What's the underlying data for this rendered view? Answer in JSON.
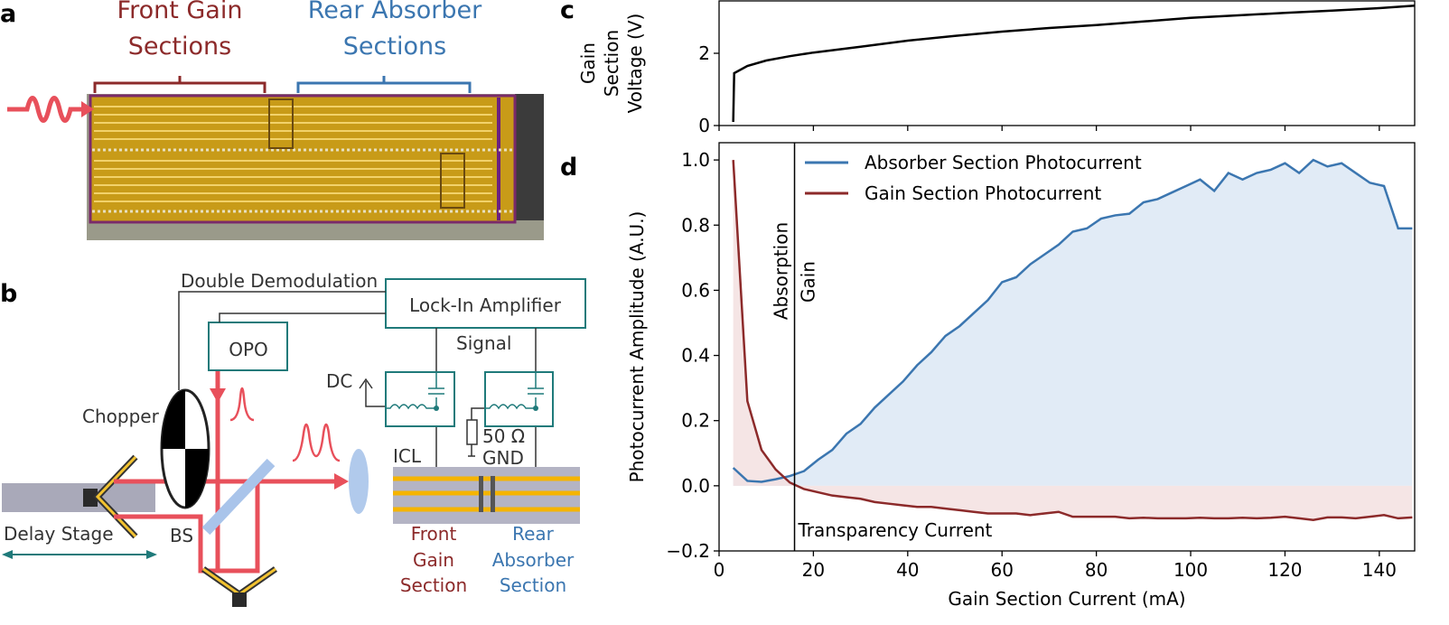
{
  "panels": {
    "letters": [
      "a",
      "b",
      "c",
      "d"
    ],
    "a": {
      "front_label": [
        "Front Gain",
        "Sections"
      ],
      "rear_label": [
        "Rear Absorber",
        "Sections"
      ]
    },
    "b": {
      "double_demodulation": "Double Demodulation",
      "lock_in": "Lock-In Amplifier",
      "opo": "OPO",
      "signal": "Signal",
      "dc": "DC",
      "chopper": "Chopper",
      "resistor": "50 Ω",
      "gnd": "GND",
      "icl": "ICL",
      "delay_stage": "Delay Stage",
      "bs": "BS",
      "front_section": [
        "Front",
        "Gain",
        "Section"
      ],
      "rear_section": [
        "Rear",
        "Absorber",
        "Section"
      ]
    }
  },
  "chart_data": [
    {
      "type": "line",
      "ylabel_lines": [
        "Gain",
        "Section",
        "Voltage (V)"
      ],
      "x": [
        3,
        3.2,
        6,
        10,
        15,
        20,
        30,
        40,
        50,
        60,
        70,
        80,
        90,
        100,
        110,
        120,
        130,
        140,
        147.5
      ],
      "series": [
        {
          "color": "#000000",
          "values": [
            0.1,
            1.45,
            1.65,
            1.8,
            1.92,
            2.02,
            2.18,
            2.35,
            2.48,
            2.6,
            2.7,
            2.78,
            2.88,
            2.98,
            3.05,
            3.12,
            3.18,
            3.25,
            3.32
          ]
        }
      ],
      "xlim": [
        0,
        147.5
      ],
      "ylim": [
        0,
        3.45
      ],
      "xticks": [
        0,
        20,
        40,
        60,
        80,
        100,
        120,
        140
      ],
      "yticks": [
        0,
        2
      ],
      "show_xtick_labels": false
    },
    {
      "type": "line",
      "xlabel": "Gain Section Current (mA)",
      "ylabel": "Photocurrent Amplitude (A.U.)",
      "x": [
        3,
        6,
        9,
        12,
        15,
        18,
        21,
        24,
        27,
        30,
        33,
        36,
        39,
        42,
        45,
        48,
        51,
        54,
        57,
        60,
        63,
        66,
        69,
        72,
        75,
        78,
        81,
        84,
        87,
        90,
        93,
        96,
        99,
        102,
        105,
        108,
        111,
        114,
        117,
        120,
        123,
        126,
        129,
        132,
        135,
        138,
        141,
        144,
        147
      ],
      "series": [
        {
          "name": "Absorber Section Photocurrent",
          "color": "#3b76b0",
          "fill": "#dce7f5",
          "values": [
            0.055,
            0.015,
            0.012,
            0.02,
            0.03,
            0.045,
            0.08,
            0.11,
            0.16,
            0.19,
            0.24,
            0.28,
            0.32,
            0.37,
            0.41,
            0.46,
            0.49,
            0.53,
            0.57,
            0.625,
            0.64,
            0.68,
            0.71,
            0.74,
            0.78,
            0.79,
            0.82,
            0.83,
            0.835,
            0.87,
            0.88,
            0.9,
            0.92,
            0.94,
            0.905,
            0.96,
            0.94,
            0.96,
            0.97,
            0.99,
            0.96,
            1.0,
            0.98,
            0.99,
            0.96,
            0.93,
            0.92,
            0.79,
            0.79
          ]
        },
        {
          "name": "Gain Section Photocurrent",
          "color": "#8c2a2a",
          "fill": "#f3e0e0",
          "values": [
            1.0,
            0.26,
            0.11,
            0.05,
            0.01,
            -0.01,
            -0.02,
            -0.03,
            -0.035,
            -0.04,
            -0.05,
            -0.055,
            -0.06,
            -0.065,
            -0.065,
            -0.07,
            -0.075,
            -0.08,
            -0.085,
            -0.085,
            -0.085,
            -0.09,
            -0.085,
            -0.08,
            -0.095,
            -0.095,
            -0.095,
            -0.095,
            -0.1,
            -0.098,
            -0.1,
            -0.1,
            -0.1,
            -0.098,
            -0.1,
            -0.1,
            -0.098,
            -0.1,
            -0.098,
            -0.095,
            -0.1,
            -0.105,
            -0.097,
            -0.097,
            -0.1,
            -0.095,
            -0.09,
            -0.1,
            -0.097
          ]
        }
      ],
      "xlim": [
        0,
        147.5
      ],
      "ylim": [
        -0.2,
        1.053
      ],
      "xticks": [
        0,
        20,
        40,
        60,
        80,
        100,
        120,
        140
      ],
      "yticks": [
        {
          "value": -0.2,
          "label": "−0.2"
        },
        {
          "value": 0,
          "label": "0.0"
        },
        0.2,
        0.4,
        0.6,
        0.8,
        {
          "value": 1,
          "label": "1.0"
        }
      ],
      "legend": "upper center",
      "vline": {
        "x": 16,
        "left_label": "Absorption",
        "right_label": "Gain",
        "bottom_label": "Transparency Current"
      }
    }
  ]
}
